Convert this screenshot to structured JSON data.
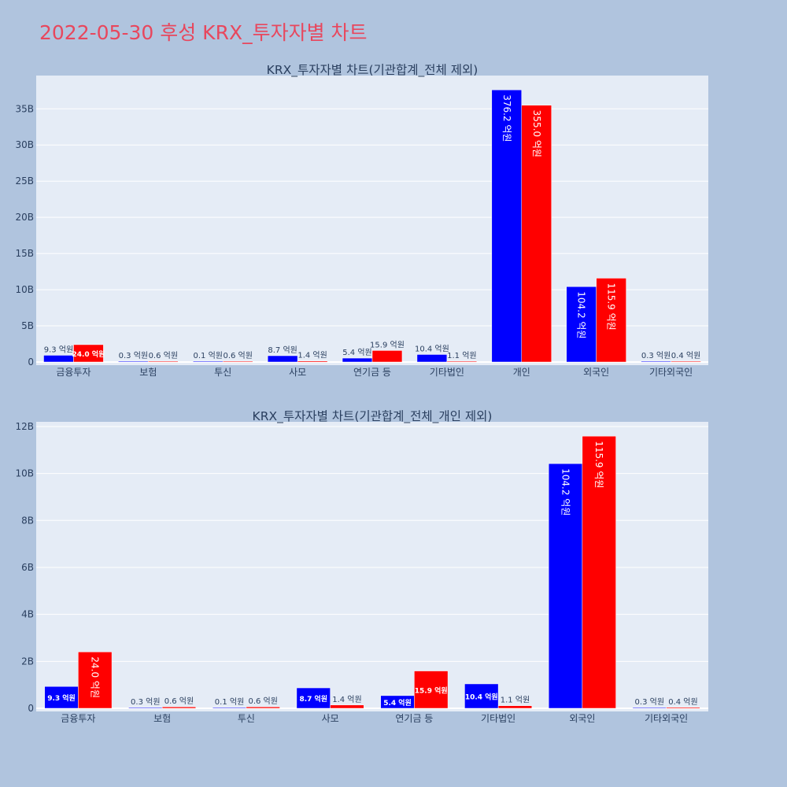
{
  "page_title": "2022-05-30 후성 KRX_투자자별 차트",
  "colors": {
    "page_background": "#b0c4de",
    "plot_background": "#e5ecf6",
    "grid": "#ffffff",
    "title": "#e8475d",
    "text": "#2a3f5f",
    "series_blue": "#0000ff",
    "series_red": "#ff0000"
  },
  "chart_data": [
    {
      "type": "bar",
      "title": "KRX_투자자별 차트(기관합계_전체 제외)",
      "categories": [
        "금융투자",
        "보험",
        "투신",
        "사모",
        "연기금 등",
        "기타법인",
        "개인",
        "외국인",
        "기타외국인"
      ],
      "series": [
        {
          "color": "#0000ff",
          "values": [
            0.93,
            0.03,
            0.01,
            0.87,
            0.54,
            1.04,
            37.62,
            10.42,
            0.03
          ],
          "labels": [
            "9.3 억원",
            "0.3 억원",
            "0.1 억원",
            "8.7 억원",
            "5.4 억원",
            "10.4 억원",
            "376.2 억원",
            "104.2 억원",
            "0.3 억원"
          ]
        },
        {
          "color": "#ff0000",
          "values": [
            2.4,
            0.06,
            0.06,
            0.14,
            1.59,
            0.11,
            35.5,
            11.59,
            0.04
          ],
          "labels": [
            "24.0 억원",
            "0.6 억원",
            "0.6 억원",
            "1.4 억원",
            "15.9 억원",
            "1.1 억원",
            "355.0 억원",
            "115.9 억원",
            "0.4 억원"
          ]
        }
      ],
      "ylim": [
        0,
        39.6
      ],
      "yticks": [
        0,
        5,
        10,
        15,
        20,
        25,
        30,
        35
      ],
      "ytick_labels": [
        "0",
        "5B",
        "10B",
        "15B",
        "20B",
        "25B",
        "30B",
        "35B"
      ],
      "grid": true
    },
    {
      "type": "bar",
      "title": "KRX_투자자별 차트(기관합계_전체_개인 제외)",
      "categories": [
        "금융투자",
        "보험",
        "투신",
        "사모",
        "연기금 등",
        "기타법인",
        "외국인",
        "기타외국인"
      ],
      "series": [
        {
          "color": "#0000ff",
          "values": [
            0.93,
            0.03,
            0.01,
            0.87,
            0.54,
            1.04,
            10.42,
            0.03
          ],
          "labels": [
            "9.3 억원",
            "0.3 억원",
            "0.1 억원",
            "8.7 억원",
            "5.4 억원",
            "10.4 억원",
            "104.2 억원",
            "0.3 억원"
          ]
        },
        {
          "color": "#ff0000",
          "values": [
            2.4,
            0.06,
            0.06,
            0.14,
            1.59,
            0.11,
            11.59,
            0.04
          ],
          "labels": [
            "24.0 억원",
            "0.6 억원",
            "0.6 억원",
            "1.4 억원",
            "15.9 억원",
            "1.1 억원",
            "115.9 억원",
            "0.4 억원"
          ]
        }
      ],
      "ylim": [
        0,
        12.2
      ],
      "yticks": [
        0,
        2,
        4,
        6,
        8,
        10,
        12
      ],
      "ytick_labels": [
        "0",
        "2B",
        "4B",
        "6B",
        "8B",
        "10B",
        "12B"
      ],
      "grid": true
    }
  ]
}
